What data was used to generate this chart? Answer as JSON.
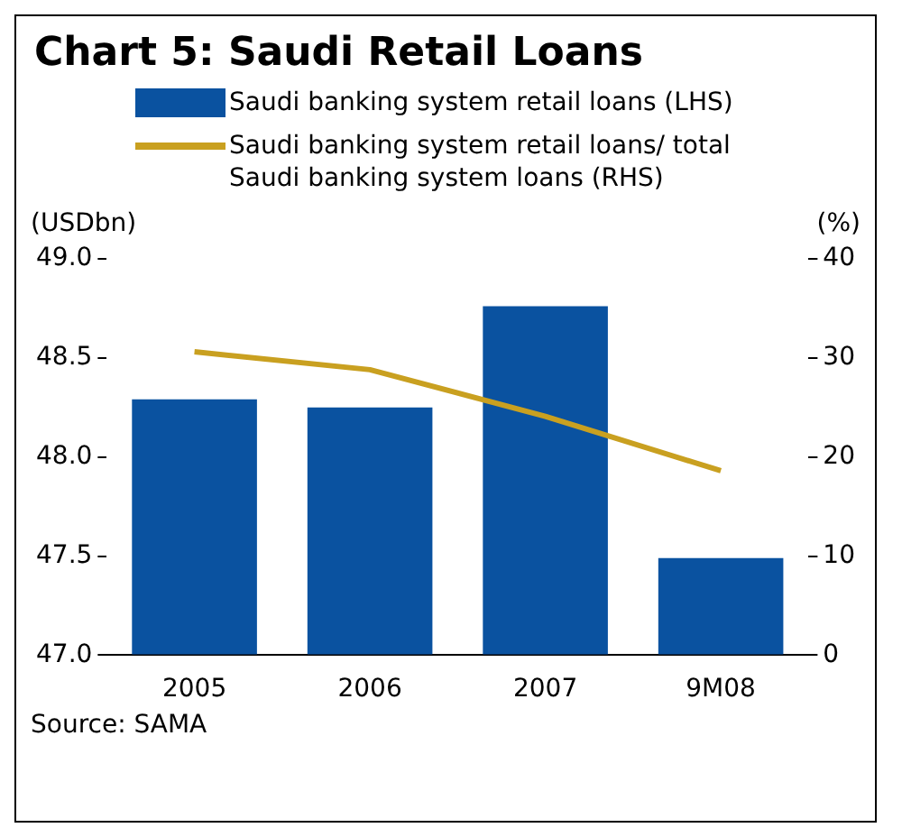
{
  "chart_data": {
    "type": "bar",
    "title": "Chart 5: Saudi Retail Loans",
    "ylabel": "(USDbn)",
    "y2label": "(%)",
    "categories": [
      "2005",
      "2006",
      "2007",
      "9M08"
    ],
    "series": [
      {
        "name": "Saudi banking system retail loans (LHS)",
        "color": "#0a52a0",
        "values": [
          48.29,
          48.25,
          48.76,
          47.49
        ]
      },
      {
        "name": "Saudi banking system retail loans/ total Saudi banking system loans (RHS)",
        "type": "line",
        "axis": "y2",
        "color": "#c9a020",
        "values": [
          30.6,
          28.8,
          24.1,
          18.6
        ]
      }
    ],
    "ylim": [
      47.0,
      49.0
    ],
    "yticks": [
      {
        "value": 47,
        "label": "47.0"
      },
      {
        "value": 47.5,
        "label": "47.5"
      },
      {
        "value": 48,
        "label": "48.0"
      },
      {
        "value": 48.5,
        "label": "48.5"
      },
      {
        "value": 49,
        "label": "49.0"
      }
    ],
    "y2lim": [
      0,
      40
    ],
    "y2ticks": [
      0,
      10,
      20,
      30,
      40
    ],
    "grid": false,
    "legend": "top",
    "marker": "none",
    "line_style": "solid",
    "annotations": [
      "Source: SAMA"
    ]
  }
}
